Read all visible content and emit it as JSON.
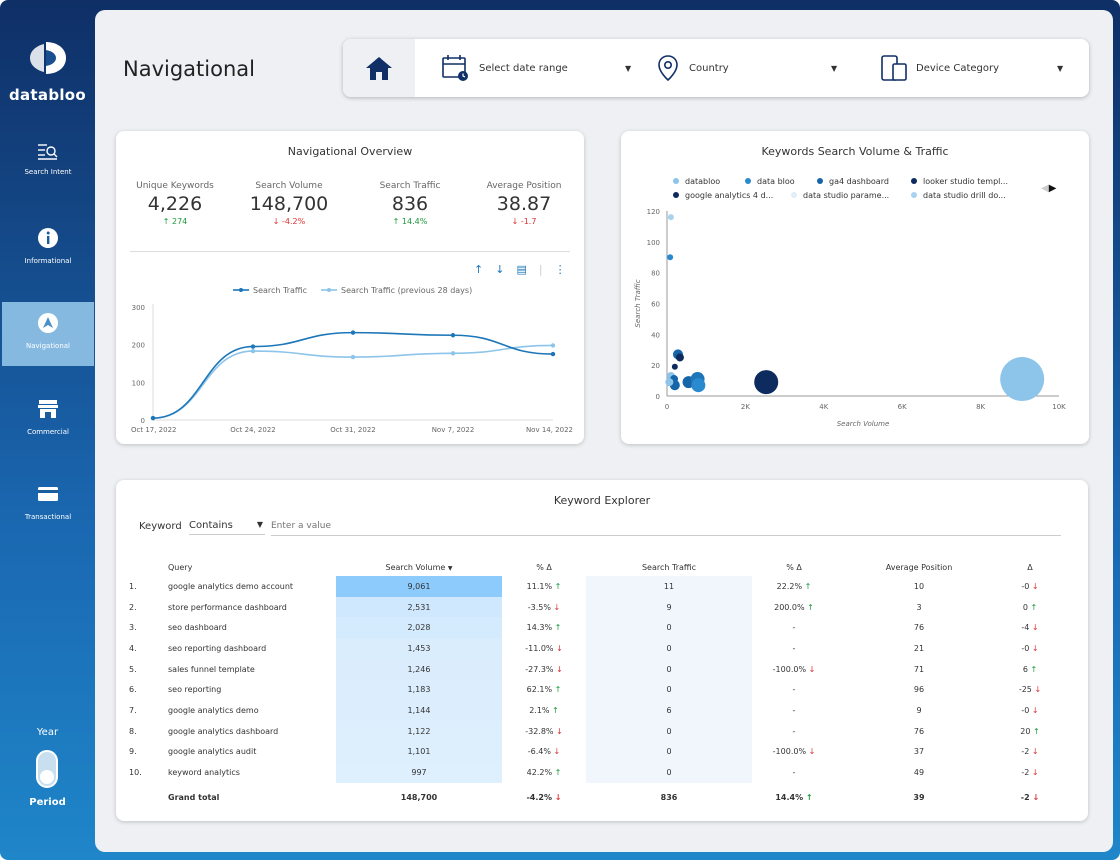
{
  "brand": {
    "name": "databloo"
  },
  "nav": [
    {
      "label": "Search Intent",
      "icon": "search-intent-icon"
    },
    {
      "label": "Informational",
      "icon": "info-icon"
    },
    {
      "label": "Navigational",
      "icon": "navigation-icon",
      "active": true
    },
    {
      "label": "Commercial",
      "icon": "store-icon"
    },
    {
      "label": "Transactional",
      "icon": "credit-card-icon"
    }
  ],
  "period_toggle": {
    "label_top": "Year",
    "label_bottom": "Period"
  },
  "page_title": "Navigational",
  "filters": {
    "date": "Select date range",
    "country": "Country",
    "device": "Device Category"
  },
  "overview": {
    "title": "Navigational Overview",
    "kpis": [
      {
        "label": "Unique Keywords",
        "value": "4,226",
        "delta": "274",
        "dir": "up"
      },
      {
        "label": "Search Volume",
        "value": "148,700",
        "delta": "-4.2%",
        "dir": "down"
      },
      {
        "label": "Search Traffic",
        "value": "836",
        "delta": "14.4%",
        "dir": "up"
      },
      {
        "label": "Average Position",
        "value": "38.87",
        "delta": "-1.7",
        "dir": "down"
      }
    ]
  },
  "chart_data": [
    {
      "type": "line",
      "title": "",
      "x": [
        "Oct 17, 2022",
        "Oct 24, 2022",
        "Oct 31, 2022",
        "Nov 7, 2022",
        "Nov 14, 2022"
      ],
      "xlabel": "",
      "ylabel": "",
      "ylim": [
        0,
        300
      ],
      "yticks": [
        0,
        100,
        200,
        300
      ],
      "series": [
        {
          "name": "Search Traffic",
          "color": "#1c76b8",
          "values": [
            5,
            195,
            232,
            225,
            175
          ]
        },
        {
          "name": "Search Traffic (previous 28 days)",
          "color": "#8cc4ea",
          "values": [
            5,
            183,
            167,
            177,
            198
          ]
        }
      ]
    },
    {
      "type": "scatter",
      "title": "Keywords Search Volume & Traffic",
      "xlabel": "Search Volume",
      "ylabel": "Search Traffic",
      "xlim": [
        0,
        10000
      ],
      "ylim": [
        0,
        120
      ],
      "xticks": [
        "0",
        "2K",
        "4K",
        "6K",
        "8K",
        "10K"
      ],
      "yticks": [
        0,
        20,
        40,
        60,
        80,
        100,
        120
      ],
      "legend": {
        "placement": "top",
        "series": [
          {
            "name": "databloo",
            "color": "#8cc4ea"
          },
          {
            "name": "data bloo",
            "color": "#2a8ad0"
          },
          {
            "name": "ga4 dashboard",
            "color": "#1565a8"
          },
          {
            "name": "looker studio templ...",
            "color": "#0d2b5e"
          },
          {
            "name": "google analytics 4 d...",
            "color": "#0d2b5e"
          },
          {
            "name": "data studio parame...",
            "color": "#e0eef8"
          },
          {
            "name": "data studio drill do...",
            "color": "#a8d2f0"
          }
        ]
      },
      "points": [
        {
          "x": 9061,
          "y": 11,
          "r": 22,
          "color": "#8cc4ea"
        },
        {
          "x": 2531,
          "y": 9,
          "r": 12,
          "color": "#0d2b5e"
        },
        {
          "x": 100,
          "y": 116,
          "r": 3,
          "color": "#a8d2f0"
        },
        {
          "x": 80,
          "y": 90,
          "r": 3,
          "color": "#2a8ad0"
        },
        {
          "x": 280,
          "y": 27,
          "r": 5,
          "color": "#1565a8"
        },
        {
          "x": 330,
          "y": 25,
          "r": 4,
          "color": "#0d2b5e"
        },
        {
          "x": 200,
          "y": 19,
          "r": 3,
          "color": "#0d2b5e"
        },
        {
          "x": 100,
          "y": 13,
          "r": 4,
          "color": "#8cc4ea"
        },
        {
          "x": 180,
          "y": 11,
          "r": 4,
          "color": "#1565a8"
        },
        {
          "x": 550,
          "y": 9,
          "r": 6,
          "color": "#1565a8"
        },
        {
          "x": 780,
          "y": 11,
          "r": 7,
          "color": "#1c76b8"
        },
        {
          "x": 800,
          "y": 7,
          "r": 7,
          "color": "#2a8ad0"
        },
        {
          "x": 200,
          "y": 7,
          "r": 5,
          "color": "#1565a8"
        },
        {
          "x": 60,
          "y": 9,
          "r": 4,
          "color": "#8cc4ea"
        }
      ]
    }
  ],
  "explorer": {
    "title": "Keyword Explorer",
    "filter_label": "Keyword",
    "filter_op": "Contains",
    "filter_placeholder": "Enter a value",
    "headers": [
      "Query",
      "Search Volume",
      "% Δ",
      "Search Traffic",
      "% Δ",
      "Average Position",
      "Δ"
    ],
    "rows": [
      {
        "n": "1.",
        "q": "google analytics demo account",
        "sv": "9,061",
        "svf": 1.0,
        "pd": "11.1%",
        "pdd": "up",
        "st": "11",
        "pt": "22.2%",
        "ptd": "up",
        "ap": "10",
        "d": "-0",
        "dd": "down"
      },
      {
        "n": "2.",
        "q": "store performance dashboard",
        "sv": "2,531",
        "svf": 0.28,
        "pd": "-3.5%",
        "pdd": "down",
        "st": "9",
        "pt": "200.0%",
        "ptd": "up",
        "ap": "3",
        "d": "0",
        "dd": "up"
      },
      {
        "n": "3.",
        "q": "seo dashboard",
        "sv": "2,028",
        "svf": 0.22,
        "pd": "14.3%",
        "pdd": "up",
        "st": "0",
        "pt": "-",
        "ptd": "",
        "ap": "76",
        "d": "-4",
        "dd": "down"
      },
      {
        "n": "4.",
        "q": "seo reporting dashboard",
        "sv": "1,453",
        "svf": 0.16,
        "pd": "-11.0%",
        "pdd": "down",
        "st": "0",
        "pt": "-",
        "ptd": "",
        "ap": "21",
        "d": "-0",
        "dd": "down"
      },
      {
        "n": "5.",
        "q": "sales funnel template",
        "sv": "1,246",
        "svf": 0.14,
        "pd": "-27.3%",
        "pdd": "down",
        "st": "0",
        "pt": "-100.0%",
        "ptd": "down",
        "ap": "71",
        "d": "6",
        "dd": "up"
      },
      {
        "n": "6.",
        "q": "seo reporting",
        "sv": "1,183",
        "svf": 0.13,
        "pd": "62.1%",
        "pdd": "up",
        "st": "0",
        "pt": "-",
        "ptd": "",
        "ap": "96",
        "d": "-25",
        "dd": "down"
      },
      {
        "n": "7.",
        "q": "google analytics demo",
        "sv": "1,144",
        "svf": 0.13,
        "pd": "2.1%",
        "pdd": "up",
        "st": "6",
        "pt": "-",
        "ptd": "",
        "ap": "9",
        "d": "-0",
        "dd": "down"
      },
      {
        "n": "8.",
        "q": "google analytics dashboard",
        "sv": "1,122",
        "svf": 0.12,
        "pd": "-32.8%",
        "pdd": "down",
        "st": "0",
        "pt": "-",
        "ptd": "",
        "ap": "76",
        "d": "20",
        "dd": "up"
      },
      {
        "n": "9.",
        "q": "google analytics audit",
        "sv": "1,101",
        "svf": 0.12,
        "pd": "-6.4%",
        "pdd": "down",
        "st": "0",
        "pt": "-100.0%",
        "ptd": "down",
        "ap": "37",
        "d": "-2",
        "dd": "down"
      },
      {
        "n": "10.",
        "q": "keyword analytics",
        "sv": "997",
        "svf": 0.11,
        "pd": "42.2%",
        "pdd": "up",
        "st": "0",
        "pt": "-",
        "ptd": "",
        "ap": "49",
        "d": "-2",
        "dd": "down"
      }
    ],
    "total": {
      "label": "Grand total",
      "sv": "148,700",
      "pd": "-4.2%",
      "pdd": "down",
      "st": "836",
      "pt": "14.4%",
      "ptd": "up",
      "ap": "39",
      "d": "-2",
      "dd": "down"
    }
  }
}
